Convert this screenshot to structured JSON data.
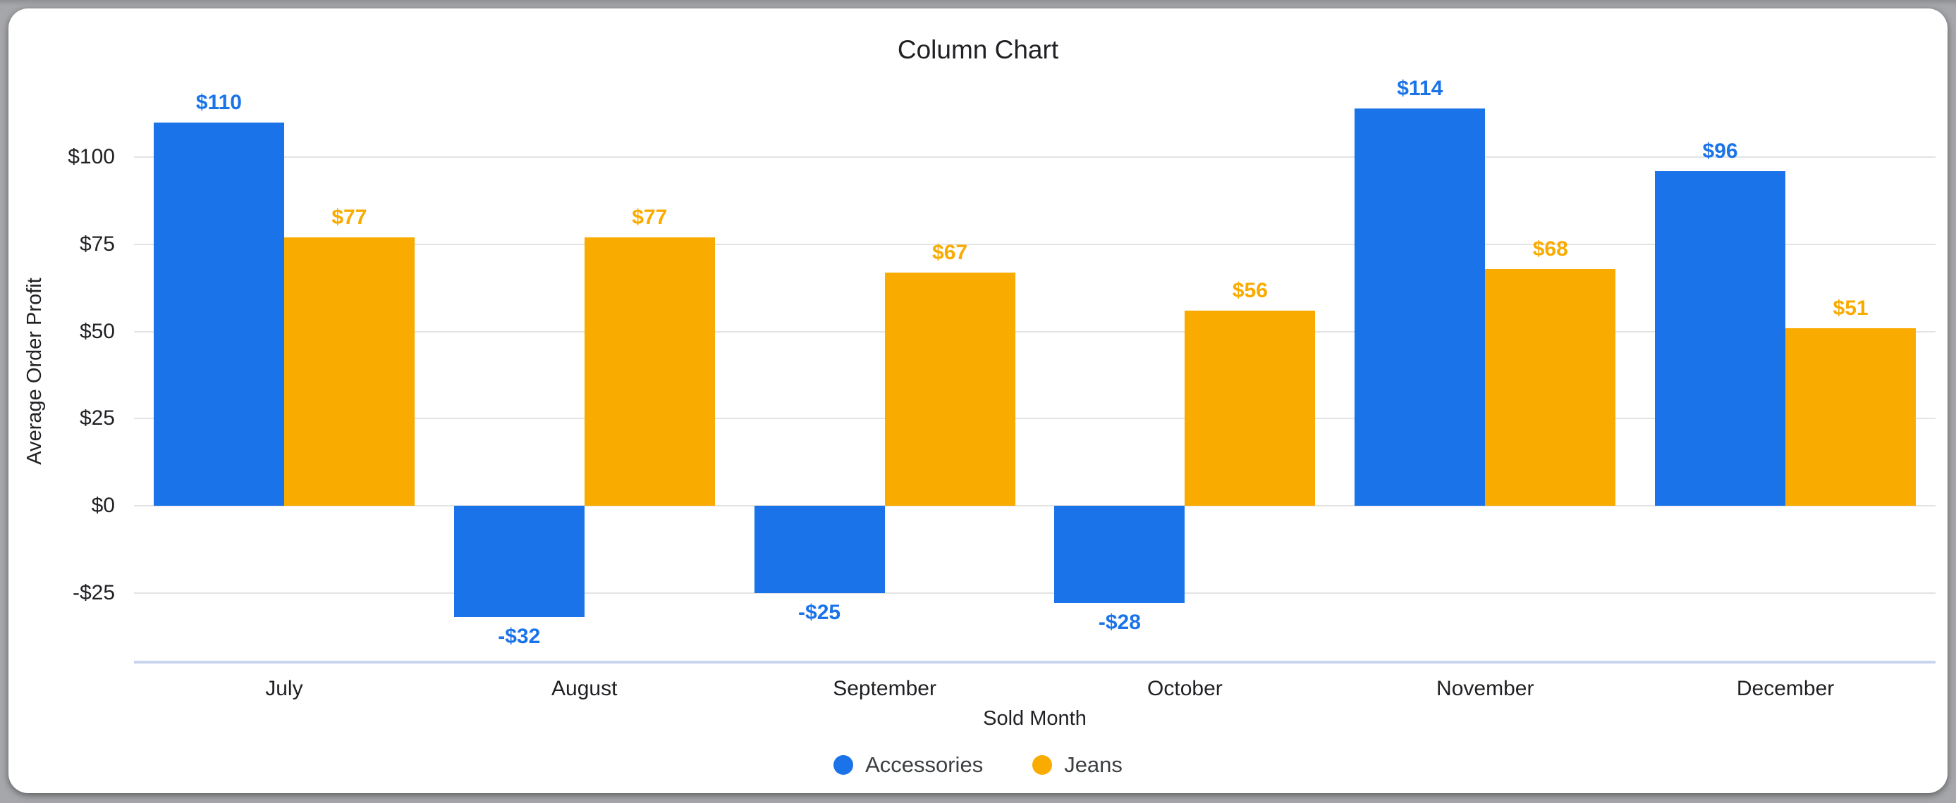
{
  "chart_data": {
    "type": "bar",
    "title": "Column Chart",
    "xlabel": "Sold Month",
    "ylabel": "Average Order Profit",
    "categories": [
      "July",
      "August",
      "September",
      "October",
      "November",
      "December"
    ],
    "series": [
      {
        "name": "Accessories",
        "color": "#1a73e8",
        "values": [
          110,
          -32,
          -25,
          -28,
          114,
          96
        ],
        "value_labels": [
          "$110",
          "-$32",
          "-$25",
          "-$28",
          "$114",
          "$96"
        ]
      },
      {
        "name": "Jeans",
        "color": "#f9ab00",
        "values": [
          77,
          77,
          67,
          56,
          68,
          51
        ],
        "value_labels": [
          "$77",
          "$77",
          "$67",
          "$56",
          "$68",
          "$51"
        ]
      }
    ],
    "yticks": [
      {
        "value": 100,
        "label": "$100"
      },
      {
        "value": 75,
        "label": "$75"
      },
      {
        "value": 50,
        "label": "$50"
      },
      {
        "value": 25,
        "label": "$25"
      },
      {
        "value": 0,
        "label": "$0"
      },
      {
        "value": -25,
        "label": "-$25"
      }
    ],
    "ylim": [
      -44.9,
      122.9
    ],
    "grid": true,
    "legend_position": "bottom"
  },
  "colors": {
    "series_accessories": "#1a73e8",
    "series_jeans": "#f9ab00",
    "gridline": "#e3e3e3",
    "x_baseline": "#c9d4ee",
    "title_text": "#202124",
    "tick_text": "#202124",
    "legend_text": "#3c4043",
    "card_background": "#ffffff",
    "page_background": "#a6a7aa"
  }
}
